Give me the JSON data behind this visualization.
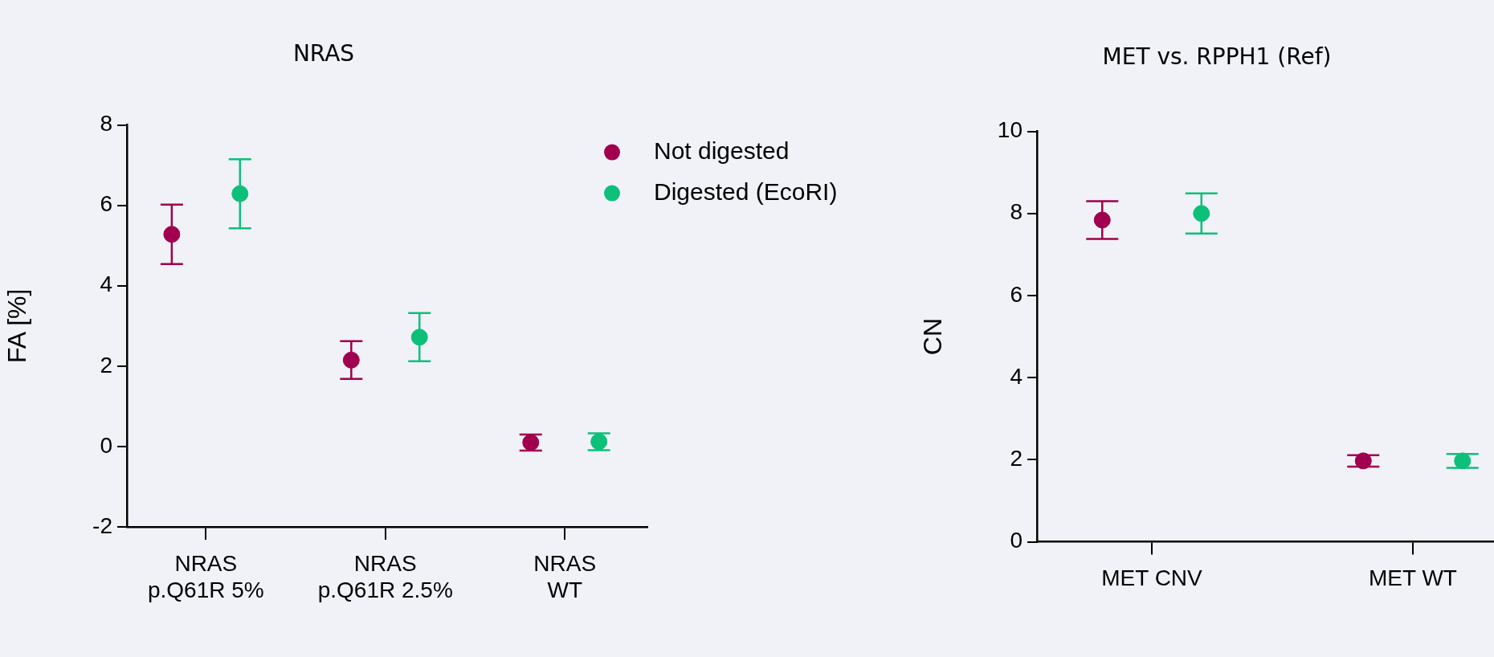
{
  "chart_data": [
    {
      "type": "scatter",
      "title": "NRAS",
      "ylabel": "FA [%]",
      "categories": [
        "NRAS\np.Q61R 5%",
        "NRAS\np.Q61R 2.5%",
        "NRAS\nWT"
      ],
      "ylim": [
        -2,
        8
      ],
      "yticks": [
        -2,
        0,
        2,
        4,
        6,
        8
      ],
      "grid": false,
      "legend": "right",
      "marker": "circle",
      "series": [
        {
          "name": "Not digested",
          "color": "#a0004e",
          "values": [
            5.28,
            2.15,
            0.1
          ],
          "errors": [
            0.74,
            0.47,
            0.2
          ]
        },
        {
          "name": "Digested (EcoRI)",
          "color": "#0cc07a",
          "values": [
            6.29,
            2.72,
            0.12
          ],
          "errors": [
            0.86,
            0.6,
            0.21
          ]
        }
      ]
    },
    {
      "type": "scatter",
      "title": "MET vs. RPPH1 (Ref)",
      "ylabel": "CN",
      "categories": [
        "MET CNV",
        "MET WT"
      ],
      "ylim": [
        0,
        10
      ],
      "yticks": [
        0,
        2,
        4,
        6,
        8,
        10
      ],
      "grid": false,
      "legend": false,
      "marker": "circle",
      "series": [
        {
          "color": "#a0004e",
          "values": [
            7.84,
            1.97
          ],
          "errors": [
            0.46,
            0.14
          ]
        },
        {
          "color": "#0cc07a",
          "values": [
            8.0,
            1.97
          ],
          "errors": [
            0.49,
            0.17
          ]
        }
      ]
    }
  ]
}
